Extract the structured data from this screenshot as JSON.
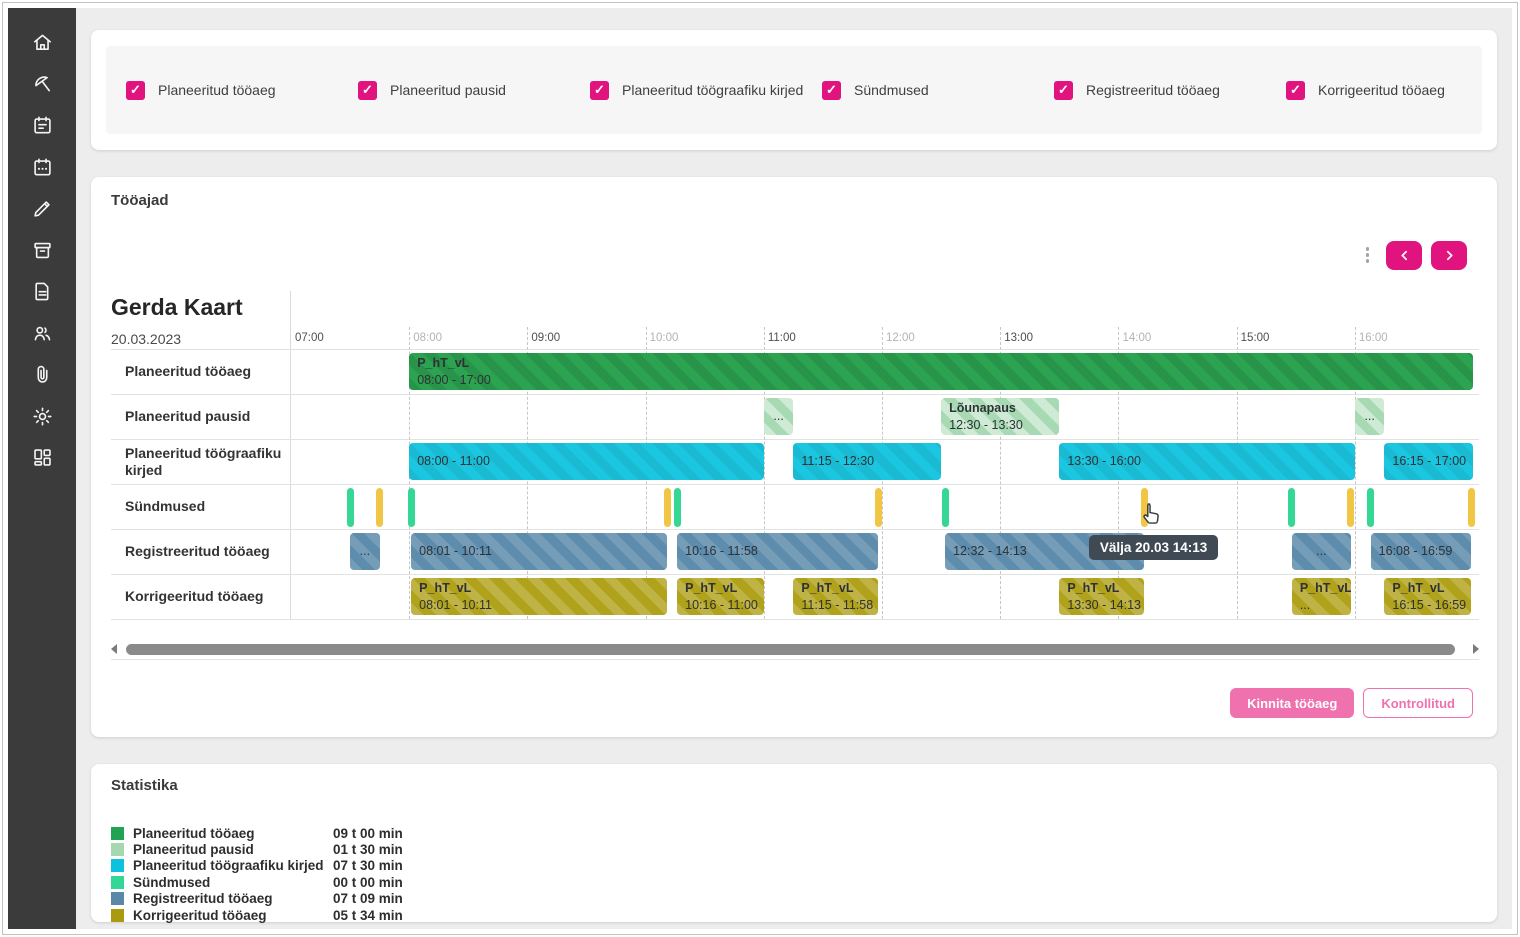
{
  "panel": {
    "title": "Tööajad"
  },
  "sidebar": {
    "color": "#3b3b3b",
    "icons": [
      "home",
      "beach-umbrella",
      "calendar-note",
      "calendar-dates",
      "edit-pencil",
      "archive-box",
      "document",
      "people",
      "paperclip",
      "settings-gear",
      "dashboard-grid"
    ]
  },
  "filters": {
    "accent": "#e0137f",
    "items": [
      {
        "label": "Planeeritud tööaeg",
        "checked": true
      },
      {
        "label": "Planeeritud pausid",
        "checked": true
      },
      {
        "label": "Planeeritud töögraafiku kirjed",
        "checked": true
      },
      {
        "label": "Sündmused",
        "checked": true
      },
      {
        "label": "Registreeritud tööaeg",
        "checked": true
      },
      {
        "label": "Korrigeeritud tööaeg",
        "checked": true
      }
    ]
  },
  "gantt": {
    "person": "Gerda Kaart",
    "date": "20.03.2023",
    "axis": {
      "start": "07:00",
      "end": "17:03",
      "hours": [
        "07:00",
        "08:00",
        "09:00",
        "10:00",
        "11:00",
        "12:00",
        "13:00",
        "14:00",
        "15:00",
        "16:00"
      ]
    },
    "bar_colors": {
      "planned": {
        "base": "#2ca351",
        "stripe": "rgba(0,0,0,0.09)"
      },
      "pause": {
        "base": "#a7dab2",
        "stripe": "rgba(255,255,255,0.45)"
      },
      "schedule": {
        "base": "#1bc6e0",
        "stripe": "rgba(0,0,0,0.06)"
      },
      "registered": {
        "base": "#5d8cac",
        "stripe": "rgba(255,255,255,0.15)"
      },
      "corrected": {
        "base": "#b0a21b",
        "stripe": "rgba(255,255,255,0.18)"
      },
      "event_in": "#35d795",
      "event_out": "#f2c645"
    },
    "rows": [
      {
        "label": "Planeeritud tööaeg",
        "type": "planned",
        "bars": [
          {
            "title": "P_hT_vL",
            "time": "08:00 - 17:00",
            "start": "08:00",
            "end": "17:00"
          }
        ]
      },
      {
        "label": "Planeeritud pausid",
        "type": "pause",
        "bars": [
          {
            "time": "...",
            "start": "11:00",
            "end": "11:15"
          },
          {
            "title": "Lõunapaus",
            "time": "12:30 - 13:30",
            "start": "12:30",
            "end": "13:30"
          },
          {
            "time": "...",
            "start": "16:00",
            "end": "16:15"
          }
        ]
      },
      {
        "label": "Planeeritud töögraafiku kirjed",
        "type": "schedule",
        "bars": [
          {
            "time": "08:00 - 11:00",
            "start": "08:00",
            "end": "11:00"
          },
          {
            "time": "11:15 - 12:30",
            "start": "11:15",
            "end": "12:30"
          },
          {
            "time": "13:30 - 16:00",
            "start": "13:30",
            "end": "16:00"
          },
          {
            "time": "16:15 - 17:00",
            "start": "16:15",
            "end": "17:00"
          }
        ]
      },
      {
        "label": "Sündmused",
        "type": "events",
        "ticks": [
          {
            "time": "07:30",
            "kind": "in"
          },
          {
            "time": "07:45",
            "kind": "out"
          },
          {
            "time": "08:01",
            "kind": "in"
          },
          {
            "time": "10:11",
            "kind": "out"
          },
          {
            "time": "10:16",
            "kind": "in"
          },
          {
            "time": "11:58",
            "kind": "out"
          },
          {
            "time": "12:32",
            "kind": "in"
          },
          {
            "time": "14:13",
            "kind": "out"
          },
          {
            "time": "15:28",
            "kind": "in"
          },
          {
            "time": "15:58",
            "kind": "out"
          },
          {
            "time": "16:08",
            "kind": "in"
          },
          {
            "time": "16:59",
            "kind": "out"
          }
        ]
      },
      {
        "label": "Registreeritud tööaeg",
        "type": "registered",
        "bars": [
          {
            "time": "...",
            "start": "07:30",
            "end": "07:45"
          },
          {
            "time": "08:01 - 10:11",
            "start": "08:01",
            "end": "10:11"
          },
          {
            "time": "10:16 - 11:58",
            "start": "10:16",
            "end": "11:58"
          },
          {
            "time": "12:32 - 14:13",
            "start": "12:32",
            "end": "14:13"
          },
          {
            "time": "...",
            "start": "15:28",
            "end": "15:58"
          },
          {
            "time": "16:08 - 16:59",
            "start": "16:08",
            "end": "16:59"
          }
        ]
      },
      {
        "label": "Korrigeeritud tööaeg",
        "type": "corrected",
        "bars": [
          {
            "title": "P_hT_vL",
            "time": "08:01 - 10:11",
            "start": "08:01",
            "end": "10:11"
          },
          {
            "title": "P_hT_vL",
            "time": "10:16 - 11:00",
            "start": "10:16",
            "end": "11:00"
          },
          {
            "title": "P_hT_vL",
            "time": "11:15 - 11:58",
            "start": "11:15",
            "end": "11:58"
          },
          {
            "title": "P_hT_vL",
            "time": "13:30 - 14:13",
            "start": "13:30",
            "end": "14:13"
          },
          {
            "title": "P_hT_vL",
            "time": "...",
            "start": "15:28",
            "end": "15:58"
          },
          {
            "title": "P_hT_vL",
            "time": "16:15 - 16:59",
            "start": "16:15",
            "end": "16:59"
          }
        ]
      }
    ],
    "tooltip": {
      "text": "Välja 20.03 14:13",
      "row": "registered",
      "anchor_time": "13:45"
    },
    "cursor": {
      "row": "events",
      "time": "14:10"
    }
  },
  "actions": {
    "accent": "#ef71ad",
    "nav_accent": "#e0137f",
    "confirm_label": "Kinnita tööaeg",
    "verified_label": "Kontrollitud"
  },
  "statistics": {
    "title": "Statistika",
    "rows": [
      {
        "label": "Planeeritud tööaeg",
        "value": "09 t 00 min",
        "color": "#21a351"
      },
      {
        "label": "Planeeritud pausid",
        "value": "01 t 30 min",
        "color": "#a5d8b0"
      },
      {
        "label": "Planeeritud töögraafiku kirjed",
        "value": "07 t 30 min",
        "color": "#0ec1dd"
      },
      {
        "label": "Sündmused",
        "value": "00 t 00 min",
        "color": "#33d795"
      },
      {
        "label": "Registreeritud tööaeg",
        "value": "07 t 09 min",
        "color": "#5a88a9"
      },
      {
        "label": "Korrigeeritud tööaeg",
        "value": "05 t 34 min",
        "color": "#a99a10"
      }
    ]
  }
}
